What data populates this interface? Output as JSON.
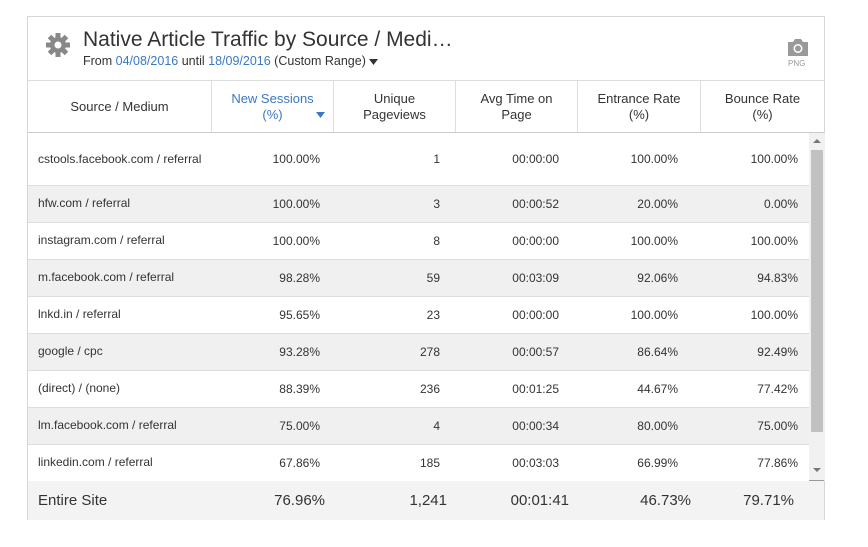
{
  "header": {
    "title": "Native Article Traffic by Source / Medi…",
    "from_label": "From",
    "start": "04/08/2016",
    "until_label": "until",
    "end": "18/09/2016",
    "range": "(Custom Range)",
    "export": "PNG"
  },
  "table": {
    "columns": [
      [
        "Source / Medium"
      ],
      [
        "New Sessions",
        "(%)"
      ],
      [
        "Unique",
        "Pageviews"
      ],
      [
        "Avg Time on",
        "Page"
      ],
      [
        "Entrance Rate",
        "(%)"
      ],
      [
        "Bounce Rate",
        "(%)"
      ]
    ],
    "rows": [
      [
        "cstools.facebook.com / referral",
        "100.00%",
        "1",
        "00:00:00",
        "100.00%",
        "100.00%"
      ],
      [
        "hfw.com / referral",
        "100.00%",
        "3",
        "00:00:52",
        "20.00%",
        "0.00%"
      ],
      [
        "instagram.com / referral",
        "100.00%",
        "8",
        "00:00:00",
        "100.00%",
        "100.00%"
      ],
      [
        "m.facebook.com / referral",
        "98.28%",
        "59",
        "00:03:09",
        "92.06%",
        "94.83%"
      ],
      [
        "lnkd.in / referral",
        "95.65%",
        "23",
        "00:00:00",
        "100.00%",
        "100.00%"
      ],
      [
        "google / cpc",
        "93.28%",
        "278",
        "00:00:57",
        "86.64%",
        "92.49%"
      ],
      [
        "(direct) / (none)",
        "88.39%",
        "236",
        "00:01:25",
        "44.67%",
        "77.42%"
      ],
      [
        "lm.facebook.com / referral",
        "75.00%",
        "4",
        "00:00:34",
        "80.00%",
        "75.00%"
      ],
      [
        "linkedin.com / referral",
        "67.86%",
        "185",
        "00:03:03",
        "66.99%",
        "77.86%"
      ]
    ],
    "footer": [
      "Entire Site",
      "76.96%",
      "1,241",
      "00:01:41",
      "46.73%",
      "79.71%"
    ]
  }
}
